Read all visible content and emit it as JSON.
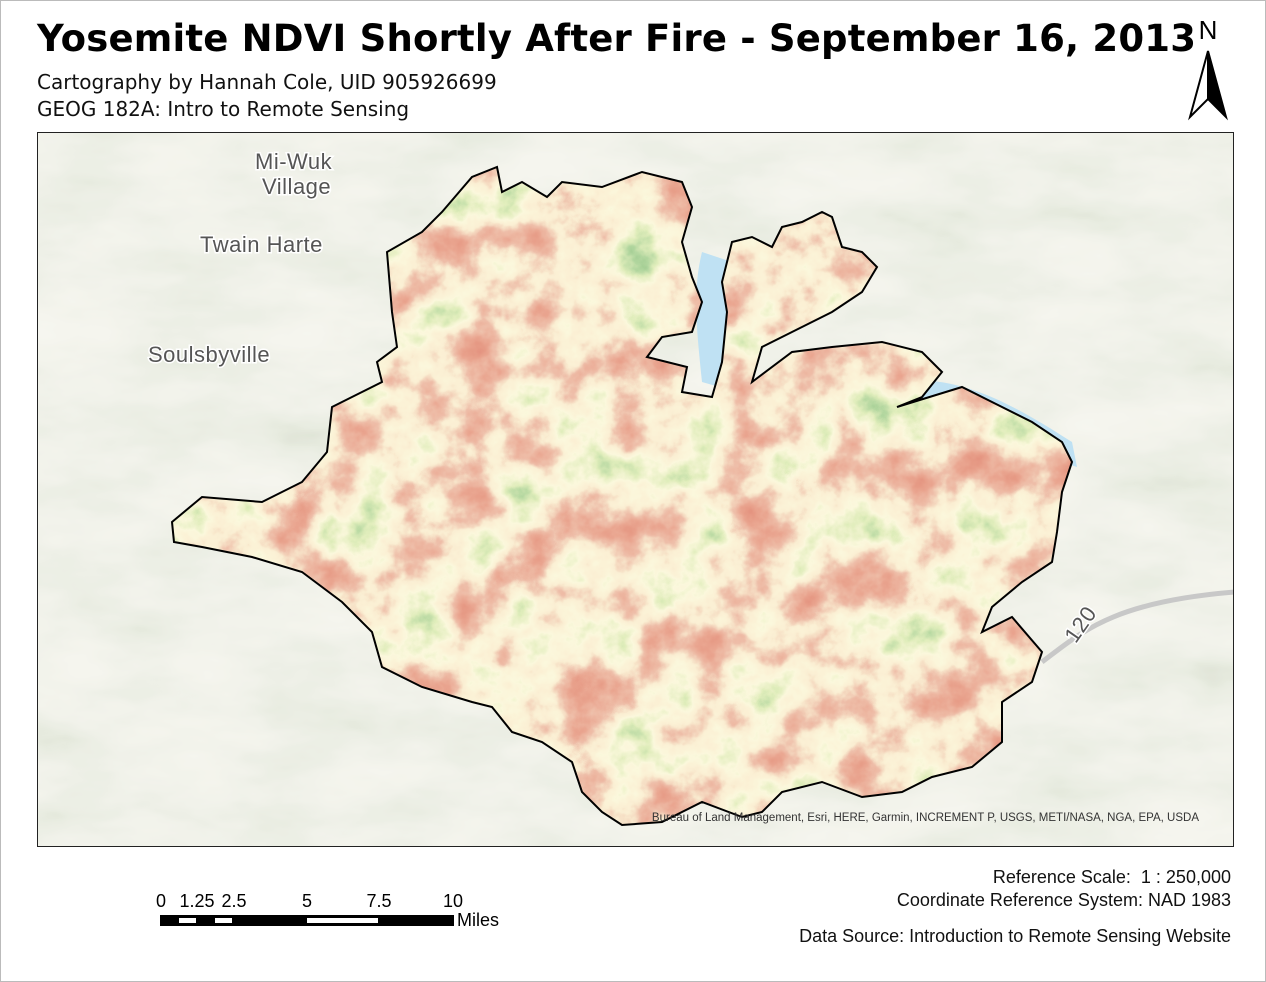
{
  "title": "Yosemite NDVI Shortly After Fire - September 16, 2013",
  "subtitle_1": "Cartography by Hannah Cole, UID 905926699",
  "subtitle_2": "GEOG 182A: Intro to Remote Sensing",
  "north_arrow": {
    "label": "N",
    "icon": "north-arrow-icon"
  },
  "map": {
    "place_labels": [
      "Mi-Wuk",
      "Village",
      "Twain Harte",
      "Soulsbyville",
      "120"
    ],
    "attribution": "Bureau of Land Management, Esri, HERE, Garmin, INCREMENT P, USGS, METI/NASA, NGA, EPA, USDA",
    "colors": {
      "low_ndvi": "#c8442e",
      "mid_ndvi": "#f7f0b8",
      "high_ndvi": "#3e9a3a",
      "water": "#bfe1f3",
      "basemap": "#e3e6d3"
    }
  },
  "scale_bar": {
    "ticks": [
      "0",
      "1.25",
      "2.5",
      "5",
      "7.5",
      "10"
    ],
    "units": "Miles"
  },
  "reference_scale": "Reference Scale:  1 : 250,000",
  "crs": "Coordinate Reference System: NAD 1983",
  "data_source": "Data Source: Introduction to Remote Sensing Website"
}
